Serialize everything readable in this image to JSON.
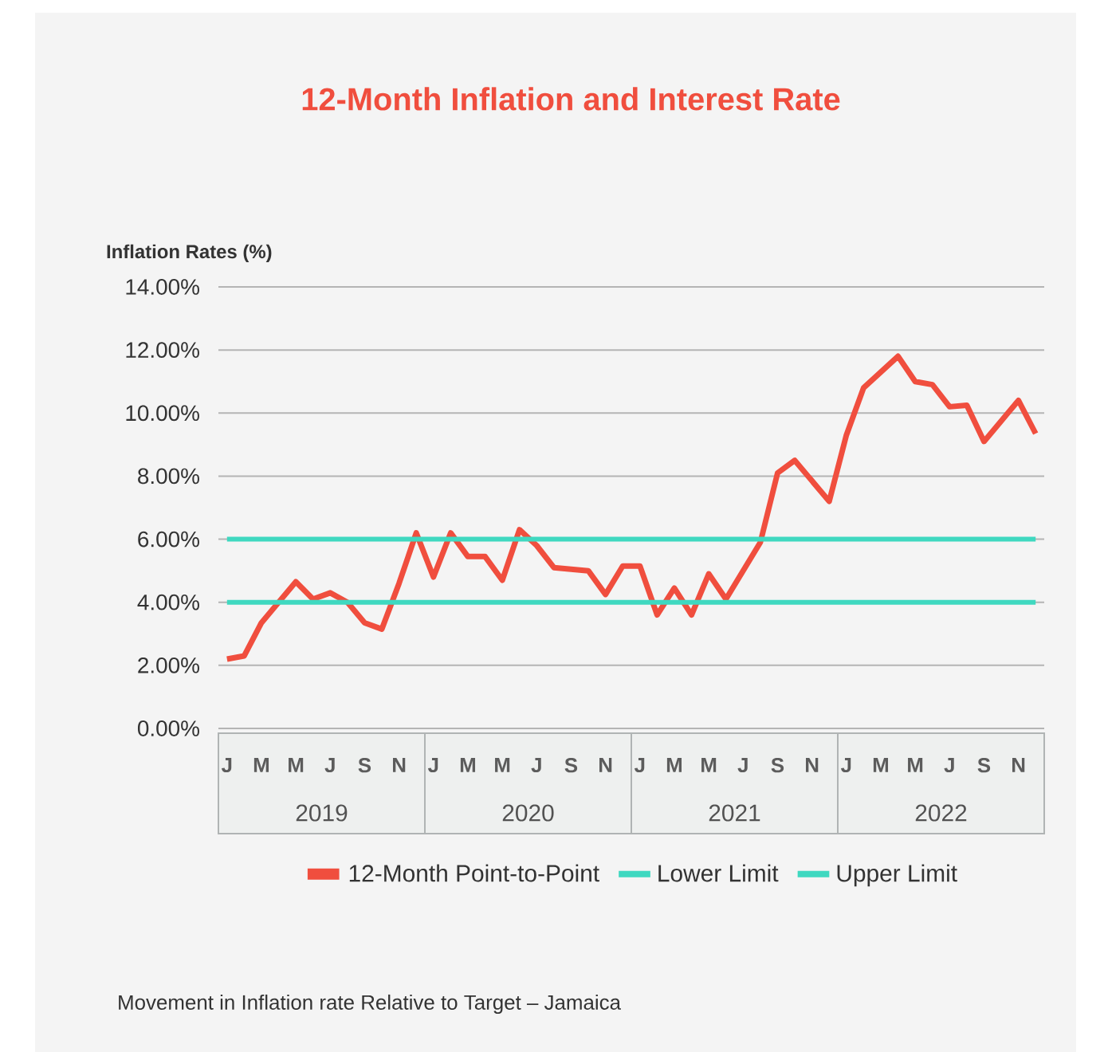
{
  "chart_data": {
    "type": "line",
    "title": "12-Month Inflation and Interest Rate",
    "ylabel": "Inflation Rates (%)",
    "categories": [
      "J",
      null,
      "M",
      null,
      "M",
      null,
      "J",
      null,
      "S",
      null,
      "N",
      null,
      "J",
      null,
      "M",
      null,
      "M",
      null,
      "J",
      null,
      "S",
      null,
      "N",
      null,
      "J",
      null,
      "M",
      null,
      "M",
      null,
      "J",
      null,
      "S",
      null,
      "N",
      null,
      "J",
      null,
      "M",
      null,
      "M",
      null,
      "J",
      null,
      "S",
      null,
      "N",
      null
    ],
    "series": [
      {
        "name": "12-Month Point-to-Point",
        "color": "#f04e3e",
        "values": [
          2.2,
          2.3,
          3.35,
          4.0,
          4.65,
          4.1,
          4.3,
          4.0,
          3.35,
          3.15,
          4.6,
          6.2,
          4.8,
          6.2,
          5.45,
          5.45,
          4.7,
          6.3,
          5.8,
          5.1,
          5.05,
          5.0,
          4.25,
          5.15,
          5.15,
          3.6,
          4.45,
          3.6,
          4.9,
          4.1,
          5.0,
          5.9,
          8.1,
          8.5,
          7.85,
          7.2,
          9.3,
          10.8,
          11.3,
          11.8,
          11.0,
          10.9,
          10.2,
          10.25,
          9.1,
          9.75,
          10.4,
          9.35
        ]
      },
      {
        "name": "Lower Limit",
        "color": "#3fd8c0",
        "values": [
          4,
          4,
          4,
          4,
          4,
          4,
          4,
          4,
          4,
          4,
          4,
          4,
          4,
          4,
          4,
          4,
          4,
          4,
          4,
          4,
          4,
          4,
          4,
          4,
          4,
          4,
          4,
          4,
          4,
          4,
          4,
          4,
          4,
          4,
          4,
          4,
          4,
          4,
          4,
          4,
          4,
          4,
          4,
          4,
          4,
          4,
          4,
          4
        ]
      },
      {
        "name": "Upper Limit",
        "color": "#3fd8c0",
        "values": [
          6,
          6,
          6,
          6,
          6,
          6,
          6,
          6,
          6,
          6,
          6,
          6,
          6,
          6,
          6,
          6,
          6,
          6,
          6,
          6,
          6,
          6,
          6,
          6,
          6,
          6,
          6,
          6,
          6,
          6,
          6,
          6,
          6,
          6,
          6,
          6,
          6,
          6,
          6,
          6,
          6,
          6,
          6,
          6,
          6,
          6,
          6,
          6
        ]
      }
    ],
    "ylim": [
      0,
      14
    ],
    "yticks": [
      {
        "value": 0,
        "label": "0.00%"
      },
      {
        "value": 2,
        "label": "2.00%"
      },
      {
        "value": 4,
        "label": "4.00%"
      },
      {
        "value": 6,
        "label": "6.00%"
      },
      {
        "value": 8,
        "label": "8.00%"
      },
      {
        "value": 10,
        "label": "10.00%"
      },
      {
        "value": 12,
        "label": "12.00%"
      },
      {
        "value": 14,
        "label": "14.00%"
      }
    ],
    "grid": "y",
    "legend": "bottom",
    "annotations": [
      "2019",
      "2020",
      "2021",
      "2022",
      "Movement in Inflation rate Relative to Target – Jamaica"
    ]
  }
}
